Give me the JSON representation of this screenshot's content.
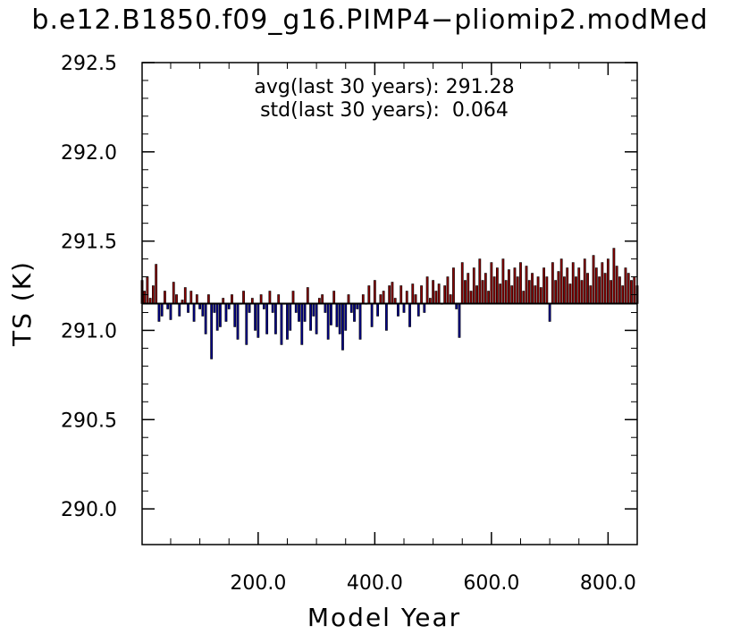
{
  "chart_data": {
    "type": "bar",
    "title": "b.e12.B1850.f09_g16.PIMP4−pliomip2.modMed",
    "xlabel": "Model Year",
    "ylabel": "TS (K)",
    "xlim": [
      1,
      850
    ],
    "ylim": [
      289.8,
      292.5
    ],
    "baseline": 291.15,
    "x_ticks": [
      200,
      400,
      600,
      800
    ],
    "x_tick_labels": [
      "200.0",
      "400.0",
      "600.0",
      "800.0"
    ],
    "y_ticks": [
      290.0,
      290.5,
      291.0,
      291.5,
      292.0,
      292.5
    ],
    "y_tick_labels": [
      "290.0",
      "290.5",
      "291.0",
      "291.5",
      "292.0",
      "292.5"
    ],
    "annotations": [
      "avg(last 30 years): 291.28",
      "std(last 30 years):  0.064"
    ],
    "grid": false,
    "colors": {
      "above": "#8b0000",
      "below": "#00008b",
      "stroke": "#000000"
    },
    "series": [
      {
        "x": [
          1,
          5,
          10,
          15,
          20,
          25,
          30,
          35,
          40,
          45,
          50,
          55,
          60,
          65,
          70,
          75,
          80,
          85,
          90,
          95,
          100,
          105,
          110,
          115,
          120,
          125,
          130,
          135,
          140,
          145,
          150,
          155,
          160,
          165,
          170,
          175,
          180,
          185,
          190,
          195,
          200,
          205,
          210,
          215,
          220,
          225,
          230,
          235,
          240,
          245,
          250,
          255,
          260,
          265,
          270,
          275,
          280,
          285,
          290,
          295,
          300,
          305,
          310,
          315,
          320,
          325,
          330,
          335,
          340,
          345,
          350,
          355,
          360,
          365,
          370,
          375,
          380,
          385,
          390,
          395,
          400,
          405,
          410,
          415,
          420,
          425,
          430,
          435,
          440,
          445,
          450,
          455,
          460,
          465,
          470,
          475,
          480,
          485,
          490,
          495,
          500,
          505,
          510,
          515,
          520,
          525,
          530,
          535,
          540,
          545,
          550,
          555,
          560,
          565,
          570,
          575,
          580,
          585,
          590,
          595,
          600,
          605,
          610,
          615,
          620,
          625,
          630,
          635,
          640,
          645,
          650,
          655,
          660,
          665,
          670,
          675,
          680,
          685,
          690,
          695,
          700,
          705,
          710,
          715,
          720,
          725,
          730,
          735,
          740,
          745,
          750,
          755,
          760,
          765,
          770,
          775,
          780,
          785,
          790,
          795,
          800,
          805,
          810,
          815,
          820,
          825,
          830,
          835,
          840,
          845,
          850
        ],
        "values": [
          291.28,
          291.22,
          291.3,
          291.18,
          291.25,
          291.37,
          291.05,
          291.08,
          291.22,
          291.12,
          291.06,
          291.27,
          291.2,
          291.08,
          291.17,
          291.24,
          291.1,
          291.22,
          291.05,
          291.2,
          291.12,
          291.08,
          290.98,
          291.2,
          290.84,
          291.1,
          291.0,
          291.02,
          291.18,
          291.05,
          291.12,
          291.2,
          291.02,
          290.95,
          291.15,
          291.22,
          290.92,
          291.1,
          291.18,
          291.0,
          290.96,
          291.2,
          291.12,
          290.98,
          291.22,
          291.1,
          290.98,
          291.2,
          290.92,
          291.15,
          290.95,
          291.0,
          291.22,
          291.1,
          291.05,
          290.92,
          291.05,
          291.24,
          291.0,
          291.08,
          290.98,
          291.18,
          291.2,
          291.1,
          290.95,
          291.03,
          291.22,
          291.02,
          290.98,
          290.89,
          291.0,
          291.2,
          291.1,
          291.05,
          291.12,
          290.95,
          291.2,
          291.15,
          291.25,
          291.02,
          291.28,
          291.08,
          291.2,
          291.22,
          291.0,
          291.25,
          291.27,
          291.18,
          291.08,
          291.25,
          291.1,
          291.22,
          291.02,
          291.26,
          291.2,
          291.08,
          291.25,
          291.1,
          291.3,
          291.18,
          291.28,
          291.22,
          291.26,
          291.15,
          291.25,
          291.3,
          291.2,
          291.35,
          291.12,
          290.96,
          291.38,
          291.28,
          291.32,
          291.22,
          291.35,
          291.25,
          291.4,
          291.28,
          291.32,
          291.22,
          291.38,
          291.3,
          291.35,
          291.26,
          291.4,
          291.28,
          291.34,
          291.25,
          291.35,
          291.3,
          291.38,
          291.22,
          291.36,
          291.28,
          291.32,
          291.25,
          291.3,
          291.24,
          291.35,
          291.3,
          291.05,
          291.38,
          291.28,
          291.33,
          291.4,
          291.3,
          291.35,
          291.26,
          291.38,
          291.3,
          291.35,
          291.28,
          291.4,
          291.32,
          291.25,
          291.42,
          291.35,
          291.3,
          291.38,
          291.32,
          291.4,
          291.28,
          291.46,
          291.36,
          291.3,
          291.25,
          291.35,
          291.32,
          291.28,
          291.3,
          291.25
        ]
      }
    ]
  }
}
